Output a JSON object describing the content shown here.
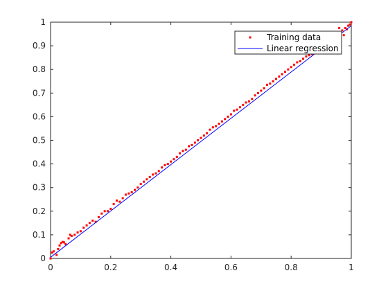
{
  "chart_data": {
    "type": "scatter",
    "xlim": [
      0,
      1
    ],
    "ylim": [
      0,
      1
    ],
    "xticks": [
      "0",
      "0.2",
      "0.4",
      "0.6",
      "0.8",
      "1"
    ],
    "yticks": [
      "0",
      "0.1",
      "0.2",
      "0.3",
      "0.4",
      "0.5",
      "0.6",
      "0.7",
      "0.8",
      "0.9",
      "1"
    ],
    "grid": false,
    "legend": {
      "placement": "top-right",
      "entries": [
        "Training data",
        "Linear regression"
      ]
    },
    "series": [
      {
        "name": "Training data",
        "kind": "scatter",
        "color": "#ff0000",
        "points": [
          [
            0.0,
            0.0
          ],
          [
            0.005,
            0.025
          ],
          [
            0.01,
            0.03
          ],
          [
            0.02,
            0.015
          ],
          [
            0.025,
            0.04
          ],
          [
            0.03,
            0.055
          ],
          [
            0.035,
            0.065
          ],
          [
            0.04,
            0.07
          ],
          [
            0.045,
            0.068
          ],
          [
            0.05,
            0.06
          ],
          [
            0.06,
            0.085
          ],
          [
            0.065,
            0.1
          ],
          [
            0.07,
            0.095
          ],
          [
            0.08,
            0.1
          ],
          [
            0.09,
            0.11
          ],
          [
            0.1,
            0.115
          ],
          [
            0.11,
            0.13
          ],
          [
            0.12,
            0.14
          ],
          [
            0.13,
            0.15
          ],
          [
            0.14,
            0.16
          ],
          [
            0.15,
            0.155
          ],
          [
            0.16,
            0.175
          ],
          [
            0.17,
            0.19
          ],
          [
            0.18,
            0.2
          ],
          [
            0.19,
            0.2
          ],
          [
            0.2,
            0.21
          ],
          [
            0.21,
            0.23
          ],
          [
            0.22,
            0.245
          ],
          [
            0.23,
            0.24
          ],
          [
            0.24,
            0.255
          ],
          [
            0.25,
            0.27
          ],
          [
            0.26,
            0.275
          ],
          [
            0.27,
            0.28
          ],
          [
            0.28,
            0.29
          ],
          [
            0.29,
            0.3
          ],
          [
            0.3,
            0.315
          ],
          [
            0.31,
            0.325
          ],
          [
            0.32,
            0.335
          ],
          [
            0.33,
            0.345
          ],
          [
            0.34,
            0.355
          ],
          [
            0.35,
            0.36
          ],
          [
            0.36,
            0.37
          ],
          [
            0.37,
            0.385
          ],
          [
            0.38,
            0.395
          ],
          [
            0.39,
            0.4
          ],
          [
            0.4,
            0.41
          ],
          [
            0.41,
            0.42
          ],
          [
            0.42,
            0.43
          ],
          [
            0.43,
            0.445
          ],
          [
            0.44,
            0.455
          ],
          [
            0.45,
            0.46
          ],
          [
            0.46,
            0.475
          ],
          [
            0.47,
            0.48
          ],
          [
            0.48,
            0.49
          ],
          [
            0.49,
            0.5
          ],
          [
            0.5,
            0.51
          ],
          [
            0.51,
            0.52
          ],
          [
            0.52,
            0.53
          ],
          [
            0.53,
            0.545
          ],
          [
            0.54,
            0.555
          ],
          [
            0.55,
            0.56
          ],
          [
            0.56,
            0.57
          ],
          [
            0.57,
            0.58
          ],
          [
            0.58,
            0.59
          ],
          [
            0.59,
            0.6
          ],
          [
            0.6,
            0.61
          ],
          [
            0.61,
            0.625
          ],
          [
            0.62,
            0.63
          ],
          [
            0.63,
            0.64
          ],
          [
            0.64,
            0.65
          ],
          [
            0.65,
            0.66
          ],
          [
            0.66,
            0.665
          ],
          [
            0.67,
            0.675
          ],
          [
            0.68,
            0.69
          ],
          [
            0.69,
            0.7
          ],
          [
            0.7,
            0.71
          ],
          [
            0.71,
            0.72
          ],
          [
            0.72,
            0.735
          ],
          [
            0.73,
            0.74
          ],
          [
            0.74,
            0.75
          ],
          [
            0.75,
            0.76
          ],
          [
            0.76,
            0.77
          ],
          [
            0.77,
            0.78
          ],
          [
            0.78,
            0.79
          ],
          [
            0.79,
            0.8
          ],
          [
            0.8,
            0.81
          ],
          [
            0.81,
            0.82
          ],
          [
            0.82,
            0.83
          ],
          [
            0.83,
            0.835
          ],
          [
            0.84,
            0.845
          ],
          [
            0.85,
            0.855
          ],
          [
            0.86,
            0.86
          ],
          [
            0.87,
            0.865
          ],
          [
            0.96,
            0.975
          ],
          [
            0.97,
            0.965
          ],
          [
            0.975,
            0.945
          ],
          [
            0.98,
            0.975
          ],
          [
            0.985,
            0.97
          ],
          [
            0.99,
            0.985
          ],
          [
            0.995,
            0.99
          ],
          [
            1.0,
            1.0
          ]
        ]
      },
      {
        "name": "Linear regression",
        "kind": "line",
        "color": "#0000ff",
        "points": [
          [
            0,
            0.005
          ],
          [
            1,
            0.985
          ]
        ]
      }
    ]
  }
}
